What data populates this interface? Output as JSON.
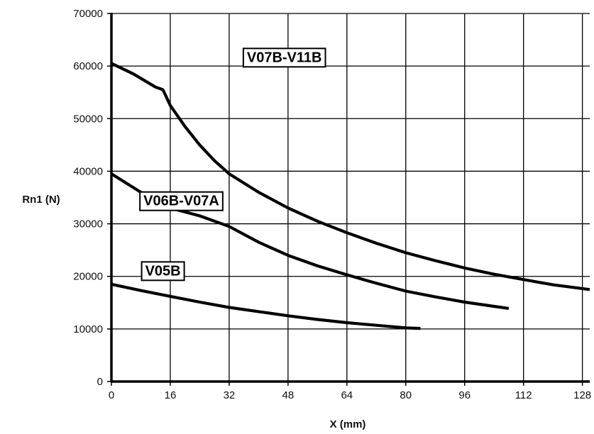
{
  "chart_data": {
    "type": "line",
    "title": "",
    "xlabel": "X (mm)",
    "ylabel": "Rn1 (N)",
    "xlim": [
      0,
      130
    ],
    "ylim": [
      0,
      70000
    ],
    "xticks": [
      0,
      16,
      32,
      48,
      64,
      80,
      96,
      112,
      128
    ],
    "yticks": [
      0,
      10000,
      20000,
      30000,
      40000,
      50000,
      60000,
      70000
    ],
    "x_tick_labels": [
      "0",
      "16",
      "32",
      "48",
      "64",
      "80",
      "96",
      "112",
      "128"
    ],
    "y_tick_labels": [
      "0",
      "10000",
      "20000",
      "30000",
      "40000",
      "50000",
      "60000",
      "70000"
    ],
    "grid": true,
    "legend": "inline labels",
    "series": [
      {
        "name": "V07B-V11B",
        "x": [
          0,
          6,
          12,
          14,
          16,
          20,
          24,
          28,
          32,
          40,
          48,
          56,
          64,
          72,
          80,
          88,
          96,
          104,
          112,
          120,
          130
        ],
        "y": [
          60500,
          58500,
          56000,
          55500,
          52500,
          48500,
          45000,
          42000,
          39500,
          36000,
          33000,
          30500,
          28300,
          26300,
          24500,
          23000,
          21600,
          20400,
          19400,
          18400,
          17500
        ]
      },
      {
        "name": "V06B-V07A",
        "x": [
          0,
          8,
          16,
          24,
          32,
          40,
          48,
          56,
          64,
          72,
          80,
          88,
          96,
          104,
          108
        ],
        "y": [
          39500,
          36000,
          33000,
          31500,
          29500,
          26500,
          24000,
          22000,
          20300,
          18700,
          17200,
          16100,
          15100,
          14300,
          13900
        ]
      },
      {
        "name": "V05B",
        "x": [
          0,
          8,
          16,
          24,
          32,
          40,
          48,
          56,
          64,
          72,
          80,
          84
        ],
        "y": [
          18500,
          17300,
          16200,
          15100,
          14100,
          13300,
          12500,
          11800,
          11200,
          10700,
          10200,
          10100
        ]
      }
    ]
  }
}
